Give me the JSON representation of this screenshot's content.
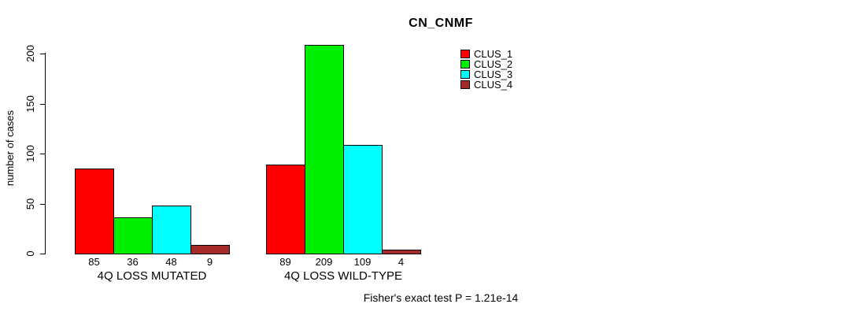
{
  "title": "CN_CNMF",
  "footer": "Fisher's exact test P = 1.21e-14",
  "y_axis": {
    "label": "number of cases",
    "ticks": [
      0,
      50,
      100,
      150,
      200
    ]
  },
  "legend": {
    "items": [
      {
        "label": "CLUS_1",
        "color": "#ff0000"
      },
      {
        "label": "CLUS_2",
        "color": "#00ee00"
      },
      {
        "label": "CLUS_3",
        "color": "#00ffff"
      },
      {
        "label": "CLUS_4",
        "color": "#a52a2a"
      }
    ]
  },
  "chart_data": {
    "type": "bar",
    "title": "CN_CNMF",
    "ylabel": "number of cases",
    "xlabel": "",
    "categories": [
      "4Q LOSS MUTATED",
      "4Q LOSS WILD-TYPE"
    ],
    "series": [
      {
        "name": "CLUS_1",
        "color": "#ff0000",
        "values": [
          85,
          89
        ]
      },
      {
        "name": "CLUS_2",
        "color": "#00ee00",
        "values": [
          36,
          209
        ]
      },
      {
        "name": "CLUS_3",
        "color": "#00ffff",
        "values": [
          48,
          109
        ]
      },
      {
        "name": "CLUS_4",
        "color": "#a52a2a",
        "values": [
          9,
          4
        ]
      }
    ],
    "bar_value_labels": [
      [
        85,
        36,
        48,
        9
      ],
      [
        89,
        209,
        109,
        4
      ]
    ],
    "yticks": [
      0,
      50,
      100,
      150,
      200
    ],
    "ylim": [
      0,
      215
    ],
    "grid": false,
    "legend_position": "top-right",
    "annotation": "Fisher's exact test P = 1.21e-14"
  }
}
